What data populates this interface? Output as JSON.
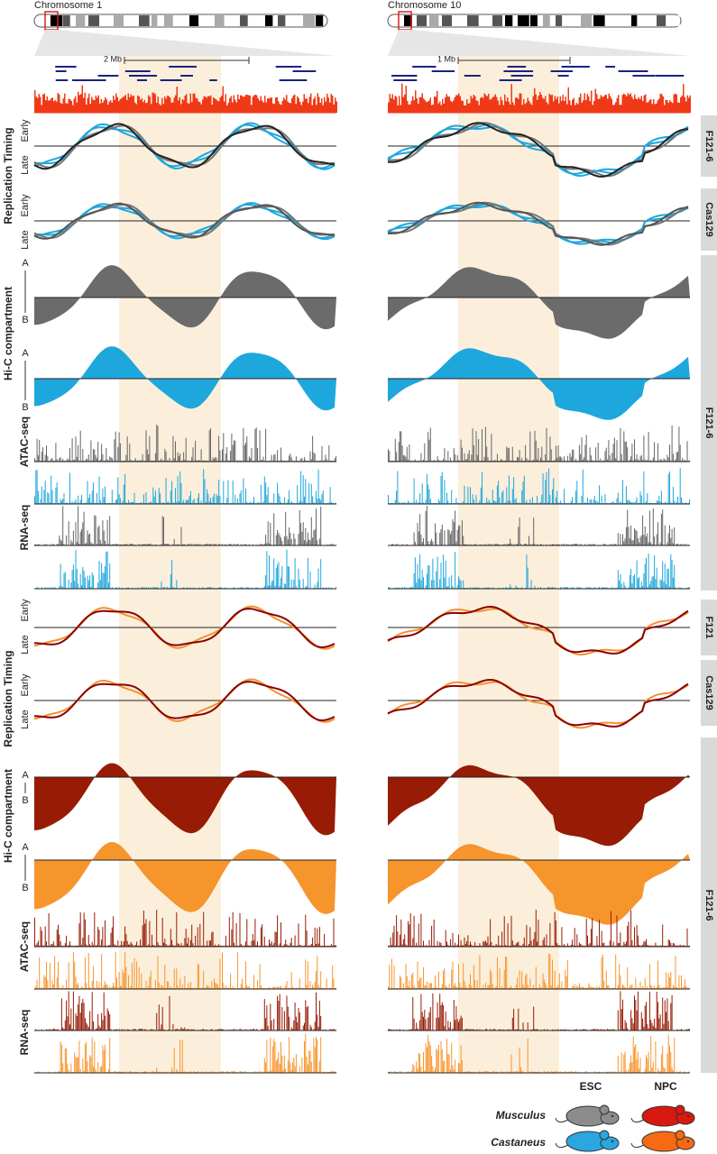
{
  "panels": [
    {
      "title": "Chromosome 1",
      "scale": "2 Mb"
    },
    {
      "title": "Chromosome 10",
      "scale": "1 Mb"
    }
  ],
  "left_labels": {
    "replication_timing": "Replication Timing",
    "early": "Early",
    "late": "Late",
    "hic": "Hi-C compartment",
    "a": "A",
    "b": "B",
    "atac": "ATAC-seq",
    "rna": "RNA-seq"
  },
  "side_labels": [
    "F121-6",
    "Cas129",
    "F121-6",
    "F121",
    "Cas129",
    "F121-6"
  ],
  "legend": {
    "esc": "ESC",
    "npc": "NPC",
    "musculus": "Musculus",
    "castaneus": "Castaneus"
  }
}
